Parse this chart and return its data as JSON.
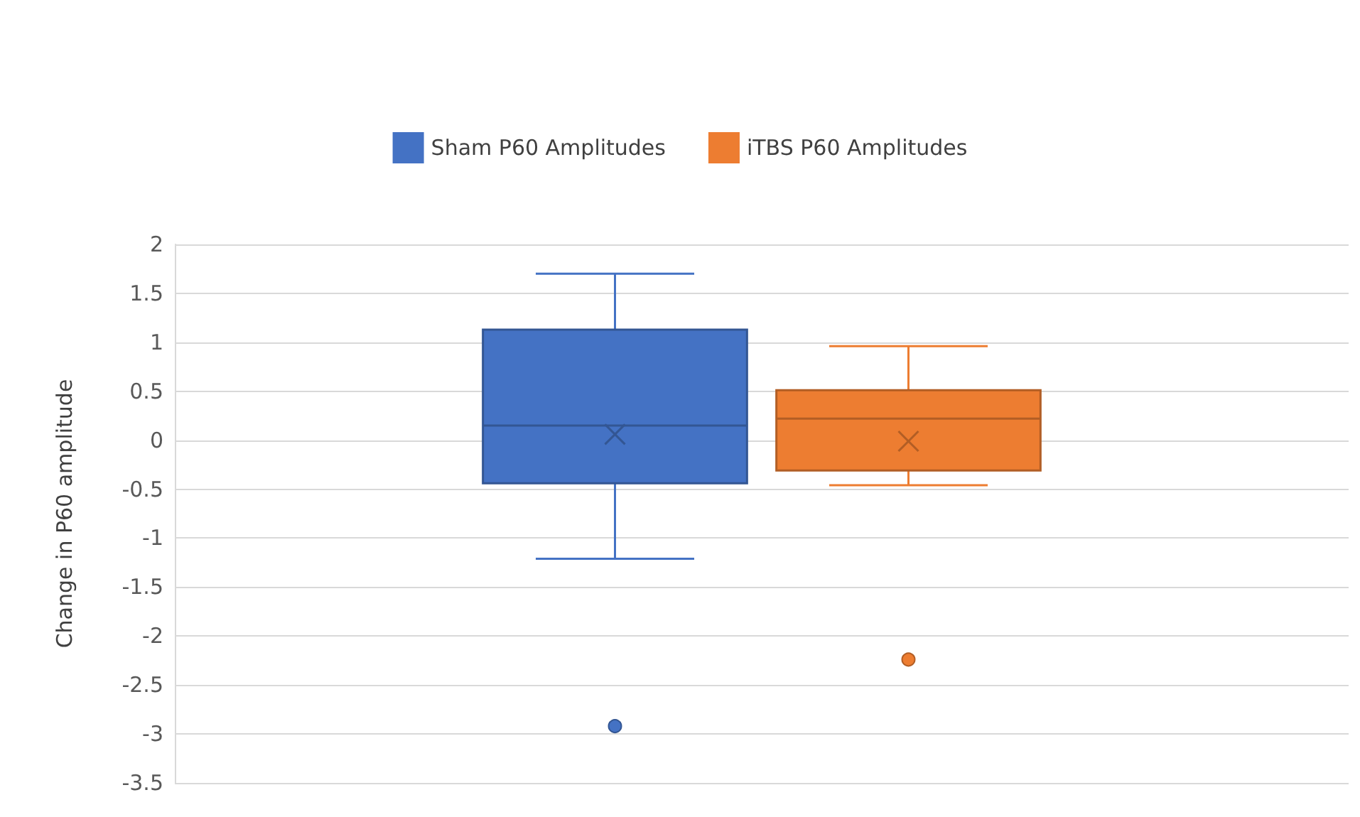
{
  "chart_data": {
    "type": "box",
    "categories": [
      null
    ],
    "ylabel": "Change in P60 amplitude",
    "ylim": [
      -3.5,
      2
    ],
    "yticks": [
      -3.5,
      -3,
      -2.5,
      -2,
      -1.5,
      -1,
      -0.5,
      0,
      0.5,
      1,
      1.5,
      2
    ],
    "grid": "y",
    "legend": "top",
    "series": [
      {
        "name": "Sham P60 Amplitudes",
        "color": "#4472c4",
        "boxes": [
          {
            "low": -1.21,
            "q1": -0.44,
            "median": 0.15,
            "q3": 1.13,
            "high": 1.7,
            "mean": 0.06,
            "outliers": [
              -2.92
            ]
          }
        ]
      },
      {
        "name": "iTBS P60 Amplitudes",
        "color": "#ed7d31",
        "boxes": [
          {
            "low": -0.46,
            "q1": -0.31,
            "median": 0.22,
            "q3": 0.51,
            "high": 0.96,
            "mean": -0.01,
            "outliers": [
              -2.24
            ]
          }
        ]
      }
    ]
  }
}
